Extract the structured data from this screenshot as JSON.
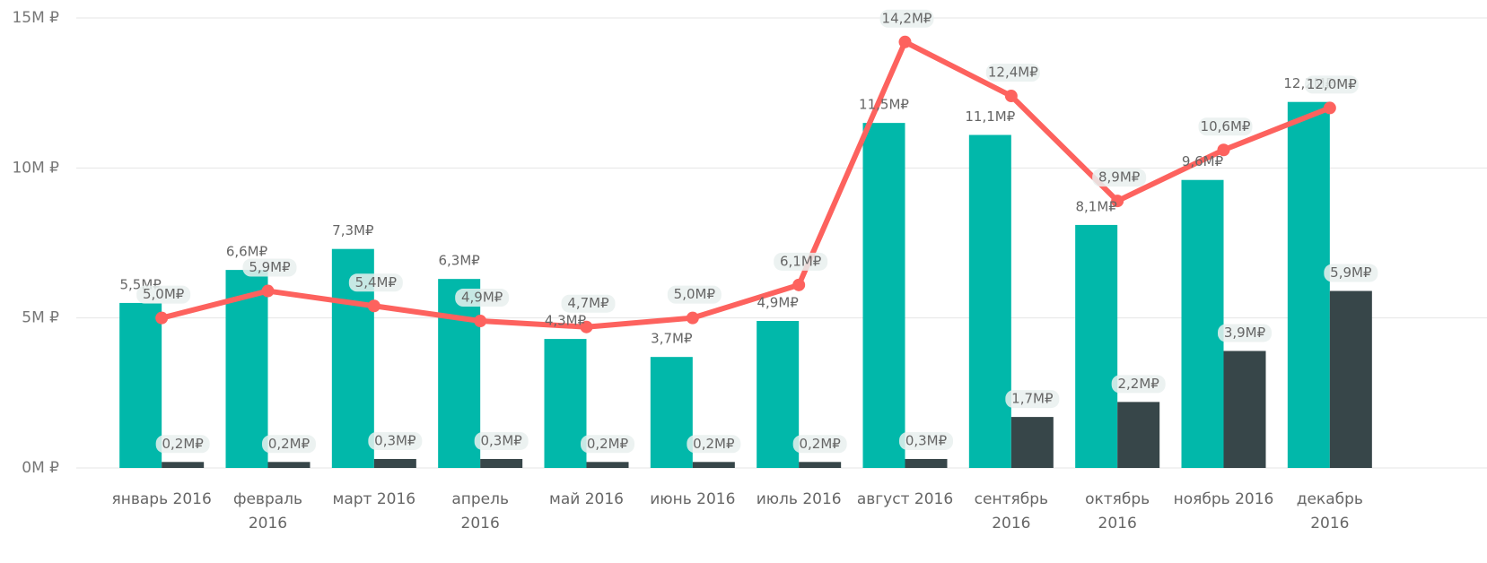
{
  "chart_data": {
    "type": "bar-line",
    "categories": [
      "январь 2016",
      "февраль 2016",
      "март 2016",
      "апрель 2016",
      "май 2016",
      "июнь 2016",
      "июль 2016",
      "август 2016",
      "сентябрь 2016",
      "октябрь 2016",
      "ноябрь 2016",
      "декабрь 2016"
    ],
    "series": [
      {
        "type": "bar",
        "color": "#01b8aa",
        "values": [
          5500000,
          6600000,
          7300000,
          6300000,
          4300000,
          3700000,
          4900000,
          11500000,
          11100000,
          8100000,
          9600000,
          12200000
        ],
        "value_labels": [
          "5,5M₽",
          "6,6M₽",
          "7,3M₽",
          "6,3M₽",
          "4,3M₽",
          "3,7M₽",
          "4,9M₽",
          "11,5M₽",
          "11,1M₽",
          "8,1M₽",
          "9,6M₽",
          "12,2M₽"
        ]
      },
      {
        "type": "bar",
        "color": "#374649",
        "values": [
          200000,
          200000,
          300000,
          300000,
          200000,
          200000,
          200000,
          300000,
          1700000,
          2200000,
          3900000,
          5900000
        ],
        "value_labels": [
          "0,2M₽",
          "0,2M₽",
          "0,3M₽",
          "0,3M₽",
          "0,2M₽",
          "0,2M₽",
          "0,2M₽",
          "0,3M₽",
          "1,7M₽",
          "2,2M₽",
          "3,9M₽",
          "5,9M₽"
        ]
      },
      {
        "type": "line",
        "color": "#fd625e",
        "values": [
          5000000,
          5900000,
          5400000,
          4900000,
          4700000,
          5000000,
          6100000,
          14200000,
          12400000,
          8900000,
          10600000,
          12000000
        ],
        "value_labels": [
          "5,0M₽",
          "5,9M₽",
          "5,4M₽",
          "4,9M₽",
          "4,7M₽",
          "5,0M₽",
          "6,1M₽",
          "14,2M₽",
          "12,4M₽",
          "8,9M₽",
          "10,6M₽",
          "12,0M₽"
        ]
      }
    ],
    "ylim": [
      0,
      15000000
    ],
    "yticks": [
      {
        "value": 0,
        "label": "0M ₽"
      },
      {
        "value": 5000000,
        "label": "5M ₽"
      },
      {
        "value": 10000000,
        "label": "10M ₽"
      },
      {
        "value": 15000000,
        "label": "15M ₽"
      }
    ],
    "grid": true
  }
}
